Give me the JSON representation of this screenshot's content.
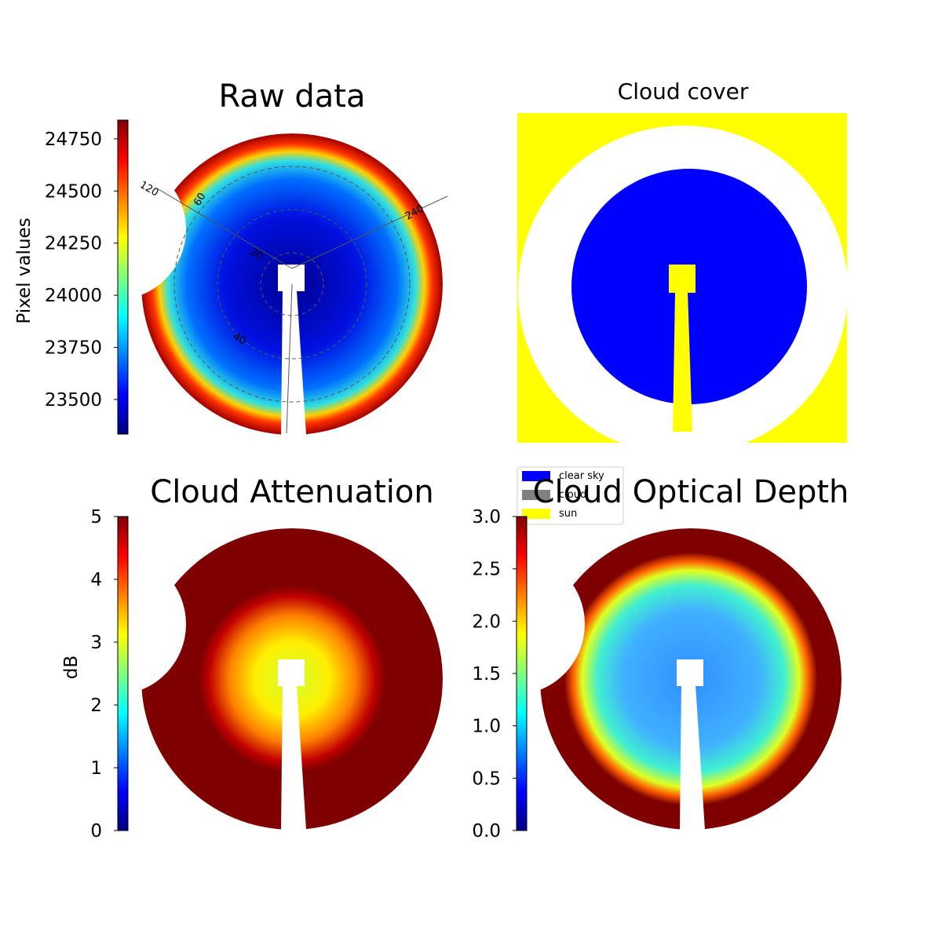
{
  "chart_data": [
    {
      "type": "image",
      "title": "Raw data",
      "colorbar_label": "Pixel values",
      "colormap": "jet",
      "clim": [
        23334,
        24840
      ],
      "cticks": [
        23500,
        23750,
        24000,
        24250,
        24500,
        24750
      ],
      "polar_labels": [
        "120",
        "60",
        "240",
        "40",
        "20"
      ]
    },
    {
      "type": "image",
      "title": "Cloud cover",
      "series": [
        {
          "name": "clear sky",
          "color": "#0000ff"
        },
        {
          "name": "cloud",
          "color": "#808080"
        },
        {
          "name": "sun",
          "color": "#ffff00"
        }
      ],
      "legend": "lower left"
    },
    {
      "type": "image",
      "title": "Cloud Attenuation",
      "colorbar_label": "dB",
      "colormap": "jet",
      "clim": [
        0,
        5
      ],
      "cticks": [
        0,
        1,
        2,
        3,
        4,
        5
      ]
    },
    {
      "type": "image",
      "title": "Cloud Optical Depth",
      "colormap": "jet",
      "clim": [
        0,
        3
      ],
      "cticks": [
        {
          "value": 0,
          "label": "0.0"
        },
        {
          "value": 0.5,
          "label": "0.5"
        },
        {
          "value": 1,
          "label": "1.0"
        },
        {
          "value": 1.5,
          "label": "1.5"
        },
        {
          "value": 2,
          "label": "2.0"
        },
        {
          "value": 2.5,
          "label": "2.5"
        },
        {
          "value": 3,
          "label": "3.0"
        }
      ]
    }
  ]
}
